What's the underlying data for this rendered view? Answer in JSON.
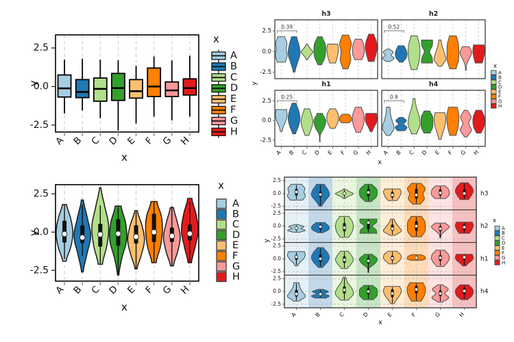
{
  "page": {
    "background": "#ffffff"
  },
  "categories": [
    "A",
    "B",
    "C",
    "D",
    "E",
    "F",
    "G",
    "H"
  ],
  "palette": {
    "A": "#a6cee3",
    "B": "#1f78b4",
    "C": "#b2df8a",
    "D": "#33a02c",
    "E": "#fdbf6f",
    "F": "#ff7f00",
    "G": "#fb9a99",
    "H": "#e31a1c"
  },
  "axis": {
    "x_label": "x",
    "y_label": "y",
    "y_tick_labels": [
      "2.5",
      "0.0",
      "-2.5"
    ],
    "y_tick_values": [
      2.5,
      0,
      -2.5
    ]
  },
  "legend": {
    "title": "x",
    "labels": [
      "A",
      "B",
      "C",
      "D",
      "E",
      "F",
      "G",
      "H"
    ]
  },
  "facet_order": [
    "h3",
    "h2",
    "h1",
    "h4"
  ],
  "chart_data": [
    {
      "id": "boxplot",
      "type": "bar_box",
      "position": "top-left",
      "xlabel": "x",
      "ylabel": "y",
      "categories": [
        "A",
        "B",
        "C",
        "D",
        "E",
        "F",
        "G",
        "H"
      ],
      "y_tick_labels": [
        "2.5",
        "0.0",
        "-2.5"
      ],
      "ylim": [
        -2.95,
        3.35
      ],
      "legend": {
        "title": "x",
        "style": "box-glyph",
        "labels": [
          "A",
          "B",
          "C",
          "D",
          "E",
          "F",
          "G",
          "H"
        ]
      },
      "stats": {
        "A": {
          "lo": -1.75,
          "q1": -0.68,
          "med": -0.12,
          "q3": 0.75,
          "hi": 1.75
        },
        "B": {
          "lo": -1.55,
          "q1": -0.72,
          "med": -0.35,
          "q3": 0.45,
          "hi": 1.8
        },
        "C": {
          "lo": -2.05,
          "q1": -0.95,
          "med": -0.15,
          "q3": 0.55,
          "hi": 1.75
        },
        "D": {
          "lo": -2.85,
          "q1": -0.9,
          "med": -0.1,
          "q3": 0.85,
          "hi": 1.7
        },
        "E": {
          "lo": -2.4,
          "q1": -0.75,
          "med": -0.3,
          "q3": 0.45,
          "hi": 1.35
        },
        "F": {
          "lo": -1.95,
          "q1": -0.65,
          "med": 0.0,
          "q3": 1.2,
          "hi": 1.95
        },
        "G": {
          "lo": -2.2,
          "q1": -0.65,
          "med": -0.25,
          "q3": 0.3,
          "hi": 1.7
        },
        "H": {
          "lo": -1.95,
          "q1": -0.55,
          "med": -0.1,
          "q3": 0.5,
          "hi": 2.0
        }
      }
    },
    {
      "id": "violin_main",
      "type": "violin",
      "position": "bottom-left",
      "xlabel": "x",
      "ylabel": "y",
      "categories": [
        "A",
        "B",
        "C",
        "D",
        "E",
        "F",
        "G",
        "H"
      ],
      "y_tick_labels": [
        "2.5",
        "0.0",
        "-2.5"
      ],
      "ylim": [
        -3.2,
        3.1
      ],
      "legend": {
        "title": "x",
        "style": "square",
        "labels": [
          "A",
          "B",
          "C",
          "D",
          "E",
          "F",
          "G",
          "H"
        ]
      },
      "violins": {
        "A": {
          "min": -1.9,
          "max": 1.8,
          "w": [
            0.2,
            0.75,
            1,
            0.75,
            0.25
          ]
        },
        "B": {
          "min": -2.6,
          "max": 2.1,
          "w": [
            0.1,
            0.55,
            1,
            0.6,
            0.12
          ]
        },
        "C": {
          "min": -2.1,
          "max": 2.9,
          "w": [
            0.25,
            0.8,
            1,
            0.55,
            0.08
          ]
        },
        "D": {
          "min": -2.8,
          "max": 1.7,
          "w": [
            0.08,
            0.45,
            1,
            0.9,
            0.35
          ]
        },
        "E": {
          "min": -2.4,
          "max": 1.4,
          "w": [
            0.12,
            0.65,
            1,
            0.7,
            0.15
          ]
        },
        "F": {
          "min": -2.0,
          "max": 2.0,
          "w": [
            0.25,
            0.75,
            1,
            0.9,
            0.35
          ]
        },
        "G": {
          "min": -2.2,
          "max": 1.6,
          "w": [
            0.18,
            0.7,
            1,
            0.65,
            0.2
          ]
        },
        "H": {
          "min": -2.0,
          "max": 2.2,
          "w": [
            0.2,
            0.65,
            1,
            0.75,
            0.25
          ]
        }
      }
    },
    {
      "id": "violin_facets_annotated",
      "type": "violin_facets_2x2",
      "position": "top-right",
      "xlabel": "x",
      "ylabel": "y",
      "facets": [
        "h3",
        "h2",
        "h1",
        "h4"
      ],
      "y_tick_labels": [
        "2.5",
        "0.0",
        "-2.5"
      ],
      "ylim": [
        -3.3,
        3.85
      ],
      "legend": {
        "title": "x",
        "style": "small-square",
        "labels": [
          "A",
          "B",
          "C",
          "D",
          "E",
          "F",
          "G",
          "H"
        ]
      },
      "annotations": {
        "h3": "0.39",
        "h2": "0.52",
        "h1": "0.25",
        "h4": "0.8"
      },
      "annotation_span": [
        "A",
        "B"
      ],
      "uses_facet_violins": true
    },
    {
      "id": "violin_facet_rows",
      "type": "violin_facet_rows",
      "position": "bottom-right",
      "xlabel": "x",
      "ylabel": "y",
      "facets": [
        "h3",
        "h2",
        "h1",
        "h4"
      ],
      "y_tick_labels": [
        "2.5",
        "0.0",
        "-2.5"
      ],
      "ylim": [
        -3.2,
        3.2
      ],
      "legend": {
        "title": "x",
        "style": "small-square",
        "labels": [
          "A",
          "B",
          "C",
          "D",
          "E",
          "F",
          "G",
          "H"
        ]
      },
      "background_bands": true,
      "band_alpha": 0.28,
      "uses_facet_violins": true
    }
  ],
  "facet_violins": {
    "h3": {
      "A": {
        "min": -1.3,
        "max": 1.8,
        "w": [
          0.7,
          1,
          0.85,
          0.95,
          0.6
        ],
        "med": 0.3,
        "q1": -0.4,
        "q3": 0.9
      },
      "B": {
        "min": -2.5,
        "max": 1.8,
        "w": [
          0.15,
          0.55,
          1,
          0.85,
          0.45
        ],
        "med": -0.2,
        "q1": -0.7,
        "q3": 0.4
      },
      "C": {
        "min": -1.0,
        "max": 0.9,
        "w": [
          0.1,
          0.5,
          1,
          0.5,
          0.1
        ],
        "med": 0.0,
        "q1": -0.3,
        "q3": 0.3
      },
      "D": {
        "min": -1.6,
        "max": 1.8,
        "w": [
          0.35,
          0.85,
          1,
          0.9,
          0.4
        ],
        "med": 0.2,
        "q1": -0.5,
        "q3": 0.9
      },
      "E": {
        "min": -1.4,
        "max": 0.9,
        "w": [
          0.5,
          0.75,
          0.9,
          1,
          0.85
        ],
        "med": -0.3,
        "q1": -0.8,
        "q3": 0.3
      },
      "F": {
        "min": -2.1,
        "max": 2.0,
        "w": [
          0.45,
          0.9,
          0.75,
          1,
          0.55
        ],
        "med": -0.3,
        "q1": -1.0,
        "q3": 0.9
      },
      "G": {
        "min": -1.0,
        "max": 1.5,
        "w": [
          0.6,
          0.95,
          1,
          0.9,
          0.55
        ],
        "med": 0.1,
        "q1": -0.4,
        "q3": 0.8
      },
      "H": {
        "min": -1.2,
        "max": 2.1,
        "w": [
          0.5,
          0.8,
          1,
          0.85,
          0.45
        ],
        "med": 0.0,
        "q1": -0.5,
        "q3": 0.8
      }
    },
    "h2": {
      "A": {
        "min": -1.2,
        "max": 0.3,
        "w": [
          0.4,
          1,
          0.5,
          0.85,
          0.25
        ],
        "med": -0.4,
        "q1": -0.7,
        "q3": -0.1
      },
      "B": {
        "min": -1.3,
        "max": 0.7,
        "w": [
          0.3,
          0.85,
          1,
          0.85,
          0.5
        ],
        "med": -0.1,
        "q1": -0.6,
        "q3": 0.3
      },
      "C": {
        "min": -2.2,
        "max": 1.9,
        "w": [
          0.5,
          0.85,
          1,
          0.9,
          0.55
        ],
        "med": -0.3,
        "q1": -1.0,
        "q3": 0.6
      },
      "D": {
        "min": -1.4,
        "max": 1.4,
        "w": [
          0.95,
          0.85,
          0.45,
          0.9,
          0.95
        ],
        "med": 0.7,
        "q1": -0.6,
        "q3": 1.1
      },
      "E": {
        "min": -1.8,
        "max": 1.4,
        "w": [
          0.3,
          1,
          0.75,
          0.4,
          0.2
        ],
        "med": -0.5,
        "q1": -0.9,
        "q3": 0.3
      },
      "F": {
        "min": -2.1,
        "max": 1.9,
        "w": [
          0.55,
          0.95,
          1,
          0.95,
          0.6
        ],
        "med": 0.0,
        "q1": -0.9,
        "q3": 1.0
      },
      "G": {
        "min": -2.3,
        "max": 0.6,
        "w": [
          0.06,
          0.15,
          0.6,
          1,
          0.6
        ],
        "med": -0.5,
        "q1": -1.0,
        "q3": 0.0
      },
      "H": {
        "min": -1.4,
        "max": 0.8,
        "w": [
          0.6,
          0.8,
          0.95,
          1,
          0.9
        ],
        "med": -0.2,
        "q1": -0.8,
        "q3": 0.3
      }
    },
    "h1": {
      "A": {
        "min": -1.4,
        "max": 1.4,
        "w": [
          0.15,
          0.4,
          0.8,
          1,
          0.9
        ],
        "med": 0.4,
        "q1": -0.2,
        "q3": 0.8
      },
      "B": {
        "min": -1.7,
        "max": 2.2,
        "w": [
          0.25,
          0.75,
          1,
          0.8,
          0.35
        ],
        "med": 0.0,
        "q1": -0.6,
        "q3": 0.8
      },
      "C": {
        "min": -1.9,
        "max": 1.5,
        "w": [
          0.35,
          0.75,
          1,
          0.8,
          0.45
        ],
        "med": -0.2,
        "q1": -0.8,
        "q3": 0.5
      },
      "D": {
        "min": -2.7,
        "max": 0.9,
        "w": [
          0.05,
          0.12,
          0.75,
          1,
          0.45
        ],
        "med": -0.4,
        "q1": -0.9,
        "q3": 0.1
      },
      "E": {
        "min": -1.0,
        "max": 1.5,
        "w": [
          0.4,
          0.8,
          1,
          0.9,
          0.5
        ],
        "med": 0.1,
        "q1": -0.3,
        "q3": 0.6
      },
      "F": {
        "min": -0.3,
        "max": 0.8,
        "w": [
          0.65,
          1,
          1,
          0.9,
          0.55
        ],
        "med": 0.2,
        "q1": 0.0,
        "q3": 0.45
      },
      "G": {
        "min": -1.5,
        "max": 1.7,
        "w": [
          0.4,
          0.8,
          1,
          0.9,
          0.5
        ],
        "med": 0.2,
        "q1": -0.4,
        "q3": 0.7
      },
      "H": {
        "min": -1.4,
        "max": 0.9,
        "w": [
          0.2,
          0.5,
          0.9,
          1,
          0.9
        ],
        "med": 0.3,
        "q1": -0.2,
        "q3": 0.6
      }
    },
    "h4": {
      "A": {
        "min": -1.9,
        "max": 1.7,
        "w": [
          0.35,
          1,
          0.7,
          0.4,
          0.3
        ],
        "med": -0.5,
        "q1": -1.0,
        "q3": 0.3
      },
      "B": {
        "min": -1.3,
        "max": 0.4,
        "w": [
          0.65,
          1,
          0.45,
          0.9,
          0.35
        ],
        "med": -0.5,
        "q1": -0.8,
        "q3": -0.1
      },
      "C": {
        "min": -1.7,
        "max": 2.8,
        "w": [
          0.45,
          1,
          0.85,
          0.4,
          0.15
        ],
        "med": 0.3,
        "q1": -0.4,
        "q3": 1.0
      },
      "D": {
        "min": -1.6,
        "max": 1.2,
        "w": [
          0.55,
          0.95,
          1,
          0.95,
          0.5
        ],
        "med": 0.0,
        "q1": -0.5,
        "q3": 0.6
      },
      "E": {
        "min": -2.4,
        "max": 1.0,
        "w": [
          0.2,
          0.5,
          0.85,
          1,
          0.85
        ],
        "med": -0.4,
        "q1": -1.1,
        "q3": 0.4
      },
      "F": {
        "min": -1.9,
        "max": 1.7,
        "w": [
          0.55,
          0.85,
          1,
          1,
          0.75
        ],
        "med": 0.4,
        "q1": -0.4,
        "q3": 1.1
      },
      "G": {
        "min": -2.1,
        "max": 1.3,
        "w": [
          0.25,
          0.95,
          0.5,
          0.9,
          0.3
        ],
        "med": -0.4,
        "q1": -0.9,
        "q3": 0.2
      },
      "H": {
        "min": -1.6,
        "max": 1.3,
        "w": [
          0.4,
          0.85,
          1,
          0.9,
          0.5
        ],
        "med": 0.1,
        "q1": -0.5,
        "q3": 0.7
      }
    }
  }
}
